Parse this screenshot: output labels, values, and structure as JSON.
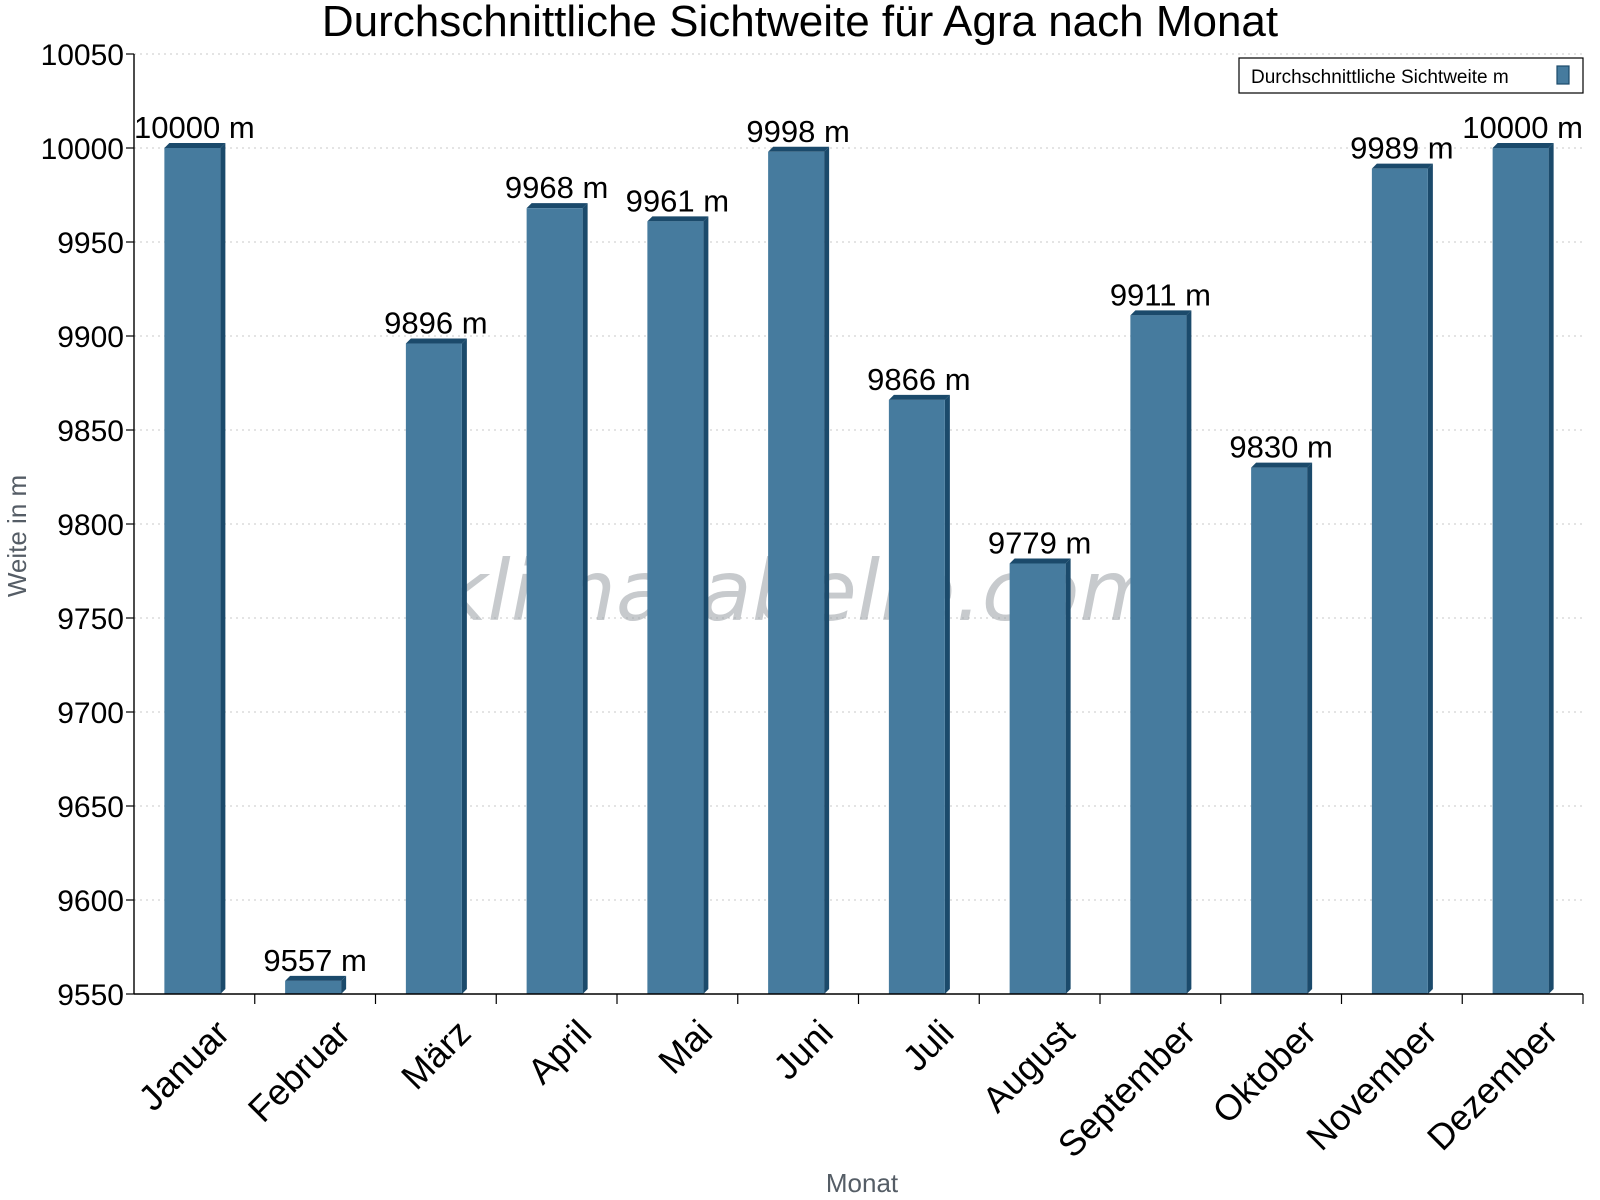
{
  "watermark": "klimatabelle.com",
  "chart_data": {
    "type": "bar",
    "title": "Durchschnittliche Sichtweite für Agra nach Monat",
    "xlabel": "Monat",
    "ylabel": "Weite in m",
    "ylim": [
      9550,
      10050
    ],
    "yticks": [
      9550,
      9600,
      9650,
      9700,
      9750,
      9800,
      9850,
      9900,
      9950,
      10000,
      10050
    ],
    "grid": true,
    "legend_position": "top-right",
    "categories": [
      "Januar",
      "Februar",
      "März",
      "April",
      "Mai",
      "Juni",
      "Juli",
      "August",
      "September",
      "Oktober",
      "November",
      "Dezember"
    ],
    "series": [
      {
        "name": "Durchschnittliche Sichtweite m",
        "color": "#467b9e",
        "values": [
          10000,
          9557,
          9896,
          9968,
          9961,
          9998,
          9866,
          9779,
          9911,
          9830,
          9989,
          10000
        ],
        "labels": [
          "10000 m",
          "9557 m",
          "9896 m",
          "9968 m",
          "9961 m",
          "9998 m",
          "9866 m",
          "9779 m",
          "9911 m",
          "9830 m",
          "9989 m",
          "10000 m"
        ]
      }
    ]
  }
}
